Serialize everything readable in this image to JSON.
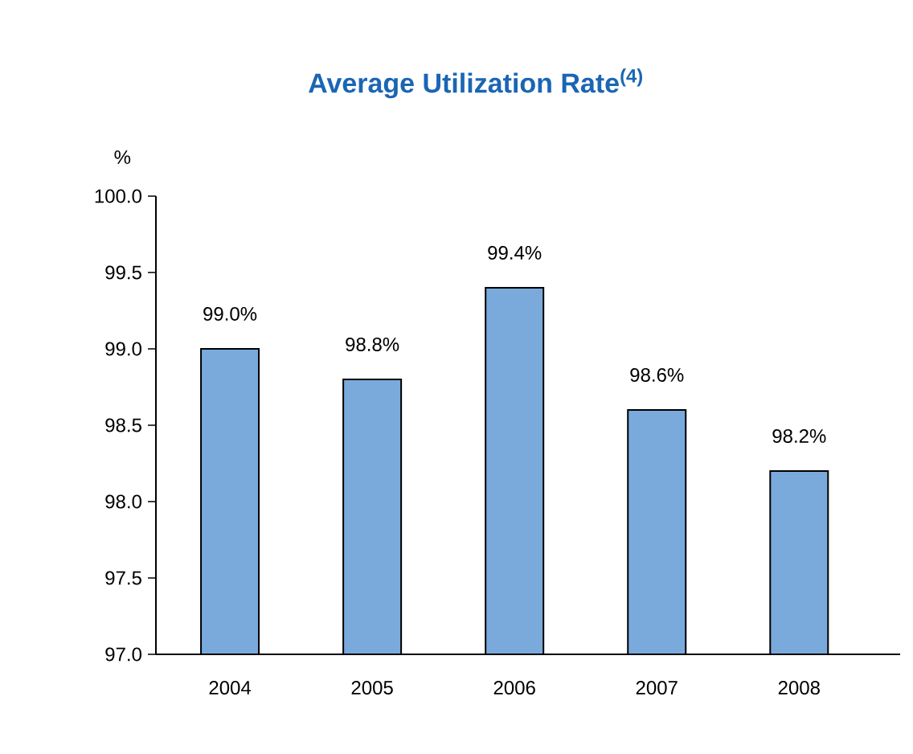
{
  "chart_data": {
    "type": "bar",
    "title": "Average Utilization Rate$^{(4)}$",
    "ylabel": "%",
    "categories": [
      "2004",
      "2005",
      "2006",
      "2007",
      "2008"
    ],
    "values": [
      99.0,
      98.8,
      99.4,
      98.6,
      98.2
    ],
    "value_labels": [
      "99.0%",
      "98.8%",
      "99.4%",
      "98.6%",
      "98.2%"
    ],
    "color": "#7aaadc",
    "ylim": [
      97.0,
      100.0
    ],
    "yticks": [
      {
        "value": 97.0,
        "label": "97.0"
      },
      {
        "value": 97.5,
        "label": "97.5"
      },
      {
        "value": 98.0,
        "label": "98.0"
      },
      {
        "value": 98.5,
        "label": "98.5"
      },
      {
        "value": 99.0,
        "label": "99.0"
      },
      {
        "value": 99.5,
        "label": "99.5"
      },
      {
        "value": 100.0,
        "label": "100.0"
      }
    ]
  }
}
